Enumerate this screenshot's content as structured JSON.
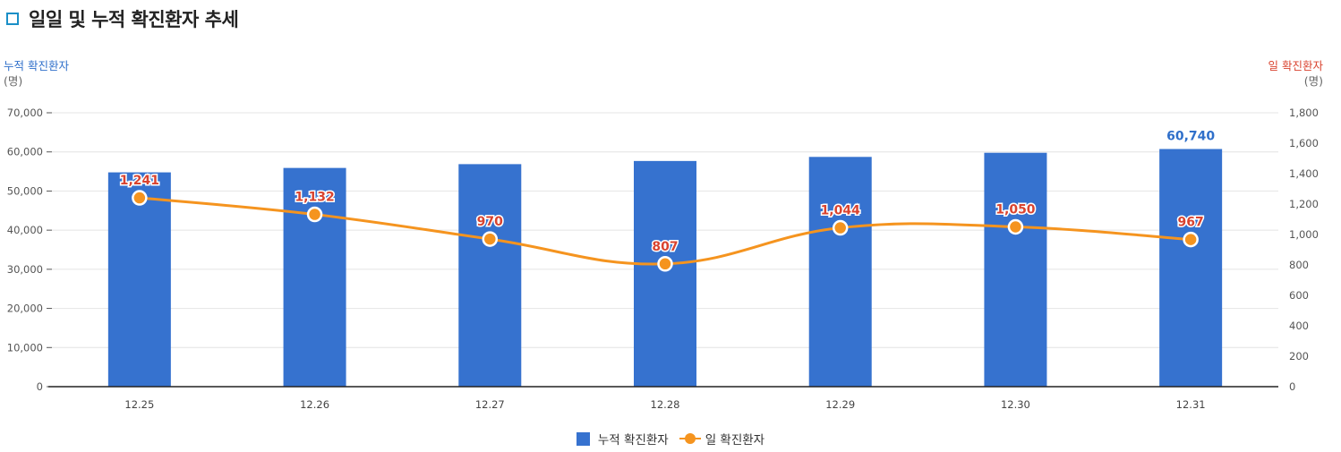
{
  "page": {
    "title": "일일 및 누적 확진환자 추세"
  },
  "colors": {
    "bar": "#3672cf",
    "line": "#f5941f",
    "left_axis_title": "#2f6fca",
    "right_axis_title": "#d9432f",
    "line_label": "#d9432f",
    "bar_label": "#2f6fca"
  },
  "chart_data": {
    "type": "bar",
    "categories": [
      "12.25",
      "12.26",
      "12.27",
      "12.28",
      "12.29",
      "12.30",
      "12.31"
    ],
    "series": [
      {
        "name": "누적 확진환자",
        "type": "bar",
        "axis": "left",
        "values": [
          54770,
          55902,
          56872,
          57679,
          58723,
          59773,
          60740
        ],
        "labels": [
          "",
          "",
          "",
          "",
          "",
          "",
          "60,740"
        ]
      },
      {
        "name": "일 확진환자",
        "type": "line",
        "axis": "right",
        "values": [
          1241,
          1132,
          970,
          807,
          1044,
          1050,
          967
        ],
        "labels": [
          "1,241",
          "1,132",
          "970",
          "807",
          "1,044",
          "1,050",
          "967"
        ]
      }
    ],
    "left_axis": {
      "title": "누적 확진환자",
      "unit": "(명)",
      "ylim": [
        0,
        70000
      ],
      "ticks": [
        "0",
        "10,000",
        "20,000",
        "30,000",
        "40,000",
        "50,000",
        "60,000",
        "70,000"
      ]
    },
    "right_axis": {
      "title": "일 확진환자",
      "unit": "(명)",
      "ylim": [
        0,
        1800
      ],
      "ticks": [
        "0",
        "200",
        "400",
        "600",
        "800",
        "1,000",
        "1,200",
        "1,400",
        "1,600",
        "1,800"
      ]
    },
    "grid": true,
    "legend": "bottom-center"
  }
}
